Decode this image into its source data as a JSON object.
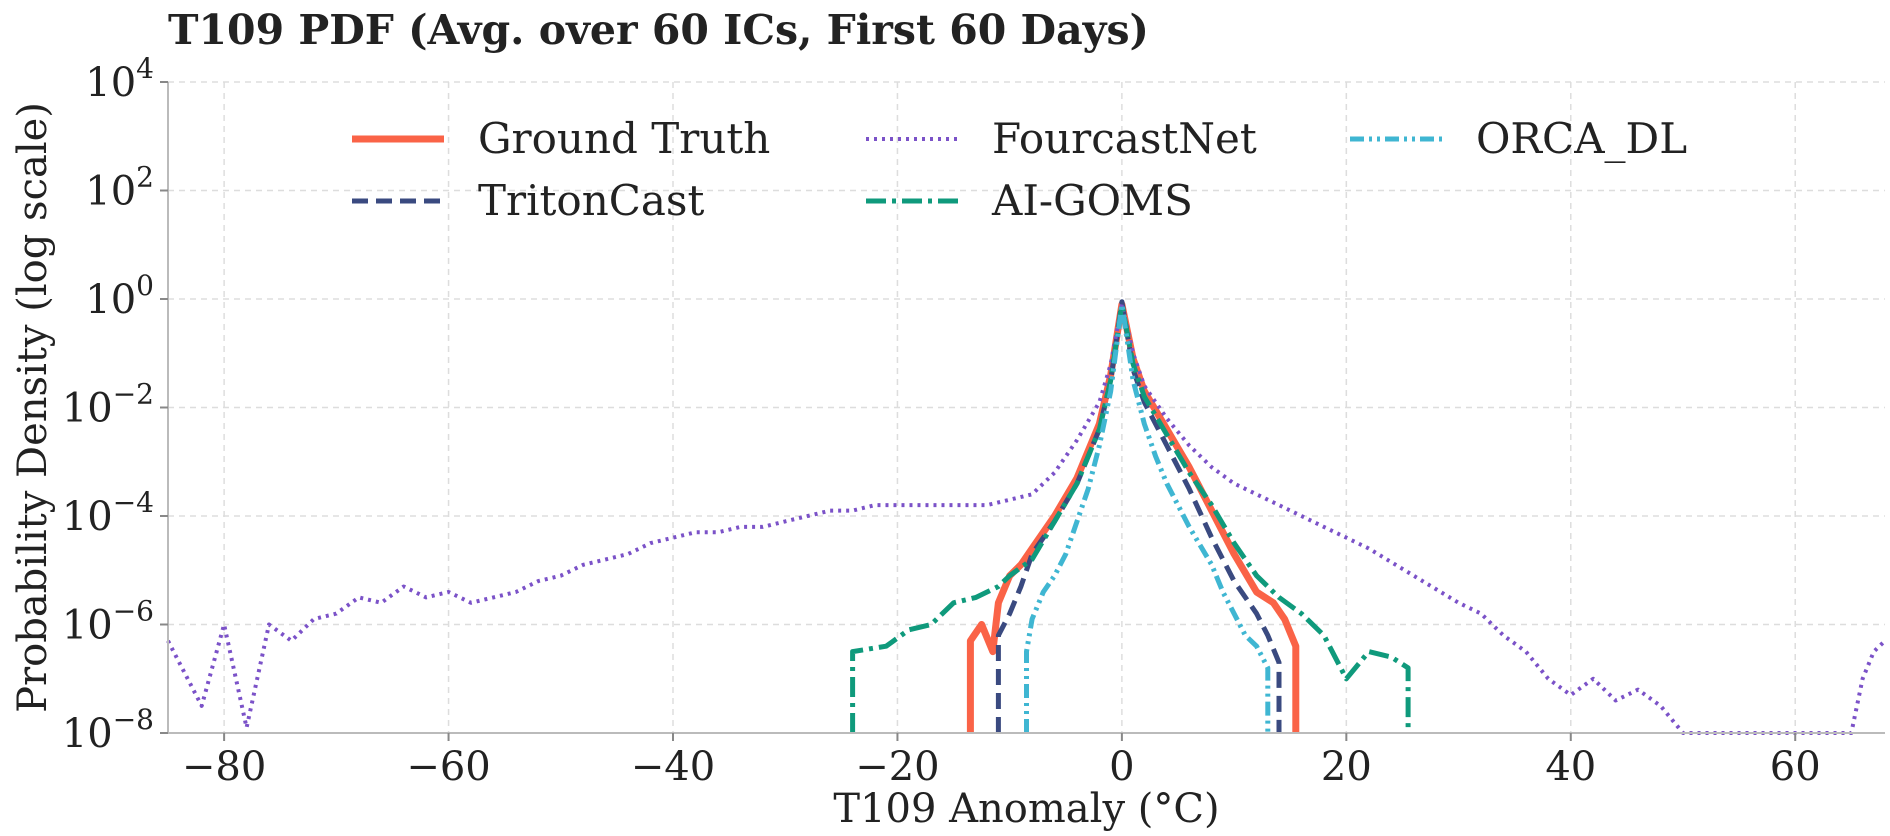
{
  "chart_data": {
    "type": "line",
    "title": "T109 PDF (Avg. over 60 ICs, First 60 Days)",
    "xlabel": "T109 Anomaly (°C)",
    "ylabel": "Probability Density (log scale)",
    "xlim": [
      -85,
      68
    ],
    "ylim_log10": [
      -8,
      4
    ],
    "x_ticks": [
      -80,
      -60,
      -40,
      -20,
      0,
      20,
      40,
      60
    ],
    "x_tick_labels": [
      "−80",
      "−60",
      "−40",
      "−20",
      "0",
      "20",
      "40",
      "60"
    ],
    "y_ticks_log10": [
      -8,
      -6,
      -4,
      -2,
      0,
      2,
      4
    ],
    "y_tick_labels": [
      {
        "base": "10",
        "exp": "−8"
      },
      {
        "base": "10",
        "exp": "−6"
      },
      {
        "base": "10",
        "exp": "−4"
      },
      {
        "base": "10",
        "exp": "−2"
      },
      {
        "base": "10",
        "exp": "0"
      },
      {
        "base": "10",
        "exp": "2"
      },
      {
        "base": "10",
        "exp": "4"
      }
    ],
    "grid": true,
    "legend_location": "upper-center",
    "series": [
      {
        "name": "Ground Truth",
        "color": "#fa6347",
        "style": "solid",
        "points": [
          [
            -13.5,
            -8
          ],
          [
            -13.5,
            -6.3
          ],
          [
            -12.5,
            -6
          ],
          [
            -11.5,
            -6.5
          ],
          [
            -11,
            -5.6
          ],
          [
            -10,
            -5.1
          ],
          [
            -9,
            -4.9
          ],
          [
            -8,
            -4.6
          ],
          [
            -6,
            -4.0
          ],
          [
            -4,
            -3.3
          ],
          [
            -2,
            -2.3
          ],
          [
            -1,
            -1.4
          ],
          [
            0,
            -0.1
          ],
          [
            1,
            -1.1
          ],
          [
            2,
            -1.7
          ],
          [
            4,
            -2.4
          ],
          [
            6,
            -3.1
          ],
          [
            8,
            -3.9
          ],
          [
            10,
            -4.7
          ],
          [
            12,
            -5.4
          ],
          [
            13.5,
            -5.6
          ],
          [
            14.5,
            -5.9
          ],
          [
            15.5,
            -6.4
          ],
          [
            15.5,
            -8
          ]
        ]
      },
      {
        "name": "TritonCast",
        "color": "#3a4a80",
        "style": "dashed",
        "points": [
          [
            -11,
            -8
          ],
          [
            -11,
            -6.2
          ],
          [
            -10,
            -5.8
          ],
          [
            -9,
            -5.3
          ],
          [
            -8,
            -4.7
          ],
          [
            -6,
            -4.1
          ],
          [
            -4,
            -3.4
          ],
          [
            -2,
            -2.4
          ],
          [
            -1,
            -1.5
          ],
          [
            0,
            -0.05
          ],
          [
            1,
            -1.3
          ],
          [
            2,
            -1.9
          ],
          [
            4,
            -2.7
          ],
          [
            6,
            -3.5
          ],
          [
            8,
            -4.4
          ],
          [
            10,
            -5.2
          ],
          [
            12,
            -5.8
          ],
          [
            13,
            -6.2
          ],
          [
            14,
            -6.7
          ],
          [
            14,
            -8
          ]
        ]
      },
      {
        "name": "FourcastNet",
        "color": "#7b52c8",
        "style": "dotted",
        "points": [
          [
            -85,
            -6.3
          ],
          [
            -82,
            -7.5
          ],
          [
            -80,
            -6.0
          ],
          [
            -78,
            -7.9
          ],
          [
            -76,
            -6.0
          ],
          [
            -74,
            -6.3
          ],
          [
            -72,
            -5.9
          ],
          [
            -70,
            -5.8
          ],
          [
            -68,
            -5.5
          ],
          [
            -66,
            -5.6
          ],
          [
            -64,
            -5.3
          ],
          [
            -62,
            -5.5
          ],
          [
            -60,
            -5.4
          ],
          [
            -58,
            -5.6
          ],
          [
            -56,
            -5.5
          ],
          [
            -54,
            -5.4
          ],
          [
            -52,
            -5.2
          ],
          [
            -50,
            -5.1
          ],
          [
            -48,
            -4.9
          ],
          [
            -46,
            -4.8
          ],
          [
            -44,
            -4.7
          ],
          [
            -42,
            -4.5
          ],
          [
            -40,
            -4.4
          ],
          [
            -38,
            -4.3
          ],
          [
            -36,
            -4.3
          ],
          [
            -34,
            -4.2
          ],
          [
            -32,
            -4.2
          ],
          [
            -30,
            -4.1
          ],
          [
            -28,
            -4.0
          ],
          [
            -26,
            -3.9
          ],
          [
            -24,
            -3.9
          ],
          [
            -22,
            -3.8
          ],
          [
            -20,
            -3.8
          ],
          [
            -18,
            -3.8
          ],
          [
            -16,
            -3.8
          ],
          [
            -14,
            -3.8
          ],
          [
            -12,
            -3.8
          ],
          [
            -10,
            -3.7
          ],
          [
            -8,
            -3.6
          ],
          [
            -6,
            -3.2
          ],
          [
            -4,
            -2.6
          ],
          [
            -2,
            -1.9
          ],
          [
            -1,
            -1.2
          ],
          [
            0,
            -0.1
          ],
          [
            1,
            -1.0
          ],
          [
            2,
            -1.6
          ],
          [
            4,
            -2.2
          ],
          [
            6,
            -2.7
          ],
          [
            8,
            -3.1
          ],
          [
            10,
            -3.4
          ],
          [
            14,
            -3.8
          ],
          [
            18,
            -4.2
          ],
          [
            22,
            -4.6
          ],
          [
            26,
            -5.1
          ],
          [
            30,
            -5.6
          ],
          [
            32,
            -5.8
          ],
          [
            34,
            -6.2
          ],
          [
            36,
            -6.5
          ],
          [
            38,
            -7.0
          ],
          [
            40,
            -7.3
          ],
          [
            42,
            -7.0
          ],
          [
            44,
            -7.4
          ],
          [
            46,
            -7.2
          ],
          [
            48,
            -7.5
          ],
          [
            50,
            -8
          ],
          [
            65,
            -8
          ],
          [
            66,
            -7.0
          ],
          [
            67,
            -6.5
          ],
          [
            68,
            -6.3
          ]
        ]
      },
      {
        "name": "AI-GOMS",
        "color": "#0f9a7c",
        "style": "dashdot",
        "points": [
          [
            -24,
            -8
          ],
          [
            -24,
            -6.5
          ],
          [
            -21,
            -6.4
          ],
          [
            -19,
            -6.1
          ],
          [
            -17,
            -6.0
          ],
          [
            -15,
            -5.6
          ],
          [
            -13,
            -5.5
          ],
          [
            -11,
            -5.3
          ],
          [
            -10,
            -5.1
          ],
          [
            -8,
            -4.8
          ],
          [
            -6,
            -4.1
          ],
          [
            -4,
            -3.4
          ],
          [
            -2,
            -2.4
          ],
          [
            -1,
            -1.5
          ],
          [
            0,
            -0.1
          ],
          [
            1,
            -1.2
          ],
          [
            2,
            -1.8
          ],
          [
            4,
            -2.5
          ],
          [
            6,
            -3.2
          ],
          [
            8,
            -3.8
          ],
          [
            10,
            -4.5
          ],
          [
            12,
            -5.1
          ],
          [
            14,
            -5.5
          ],
          [
            16,
            -5.8
          ],
          [
            18,
            -6.2
          ],
          [
            20,
            -7.0
          ],
          [
            22,
            -6.5
          ],
          [
            24,
            -6.6
          ],
          [
            25.5,
            -6.8
          ],
          [
            25.5,
            -8
          ]
        ]
      },
      {
        "name": "ORCA_DL",
        "color": "#3fb6d2",
        "style": "dashdotdot",
        "points": [
          [
            -8.5,
            -8
          ],
          [
            -8.5,
            -6.5
          ],
          [
            -8,
            -5.9
          ],
          [
            -7,
            -5.4
          ],
          [
            -6,
            -5.1
          ],
          [
            -5,
            -4.7
          ],
          [
            -4,
            -4.1
          ],
          [
            -3,
            -3.5
          ],
          [
            -2,
            -2.7
          ],
          [
            -1,
            -1.7
          ],
          [
            0,
            -0.1
          ],
          [
            1,
            -1.5
          ],
          [
            2,
            -2.3
          ],
          [
            3,
            -2.9
          ],
          [
            4,
            -3.4
          ],
          [
            6,
            -4.2
          ],
          [
            8,
            -4.9
          ],
          [
            9,
            -5.4
          ],
          [
            10,
            -5.8
          ],
          [
            11,
            -6.2
          ],
          [
            12,
            -6.4
          ],
          [
            13,
            -6.8
          ],
          [
            13,
            -8
          ]
        ]
      }
    ]
  }
}
